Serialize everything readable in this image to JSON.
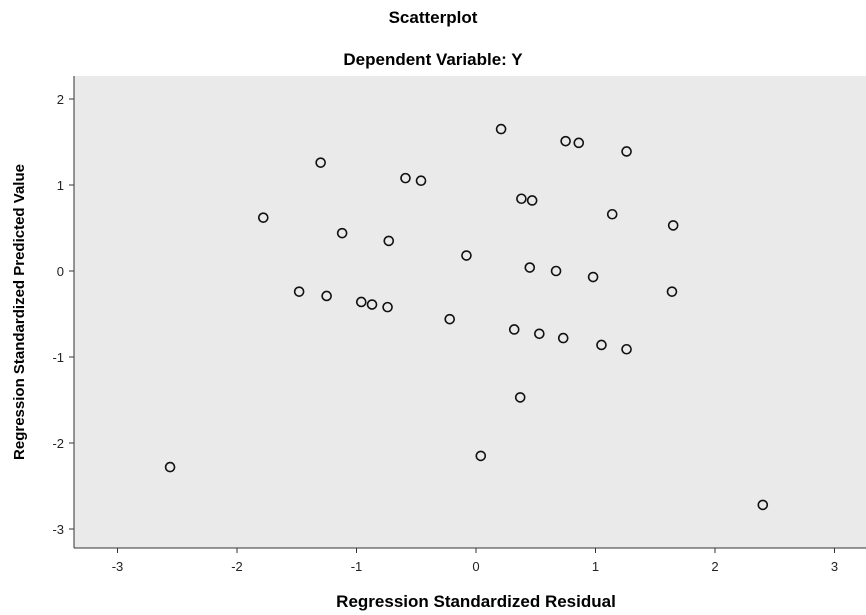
{
  "chart_data": {
    "type": "scatter",
    "title": "Scatterplot",
    "subtitle": "Dependent Variable: Y",
    "xlabel": "Regression Standardized Residual",
    "ylabel": "Regression Standardized Predicted Value",
    "xlim": [
      -3.2,
      3.2
    ],
    "ylim": [
      -3.2,
      2.1
    ],
    "xticks": [
      -3,
      -2,
      -1,
      0,
      1,
      2,
      3
    ],
    "yticks": [
      2,
      1,
      0,
      -1,
      -2,
      -3
    ],
    "grid": false,
    "plot_background": "#eaeaea",
    "marker": "open-circle",
    "points": [
      {
        "x": 0.21,
        "y": 1.65
      },
      {
        "x": 0.75,
        "y": 1.51
      },
      {
        "x": 0.86,
        "y": 1.49
      },
      {
        "x": 1.26,
        "y": 1.39
      },
      {
        "x": -1.3,
        "y": 1.26
      },
      {
        "x": -0.59,
        "y": 1.08
      },
      {
        "x": -0.46,
        "y": 1.05
      },
      {
        "x": 0.38,
        "y": 0.84
      },
      {
        "x": 0.47,
        "y": 0.82
      },
      {
        "x": -1.78,
        "y": 0.62
      },
      {
        "x": 1.14,
        "y": 0.66
      },
      {
        "x": 1.65,
        "y": 0.53
      },
      {
        "x": -1.12,
        "y": 0.44
      },
      {
        "x": -0.73,
        "y": 0.35
      },
      {
        "x": -0.08,
        "y": 0.18
      },
      {
        "x": 0.45,
        "y": 0.04
      },
      {
        "x": 0.67,
        "y": 0.0
      },
      {
        "x": 0.98,
        "y": -0.07
      },
      {
        "x": -1.48,
        "y": -0.24
      },
      {
        "x": -1.25,
        "y": -0.29
      },
      {
        "x": 1.64,
        "y": -0.24
      },
      {
        "x": -0.96,
        "y": -0.36
      },
      {
        "x": -0.87,
        "y": -0.39
      },
      {
        "x": -0.74,
        "y": -0.42
      },
      {
        "x": -0.22,
        "y": -0.56
      },
      {
        "x": 0.32,
        "y": -0.68
      },
      {
        "x": 0.53,
        "y": -0.73
      },
      {
        "x": 0.73,
        "y": -0.78
      },
      {
        "x": 1.05,
        "y": -0.86
      },
      {
        "x": 1.26,
        "y": -0.91
      },
      {
        "x": 0.37,
        "y": -1.47
      },
      {
        "x": 0.04,
        "y": -2.15
      },
      {
        "x": -2.56,
        "y": -2.28
      },
      {
        "x": 2.4,
        "y": -2.72
      }
    ]
  }
}
